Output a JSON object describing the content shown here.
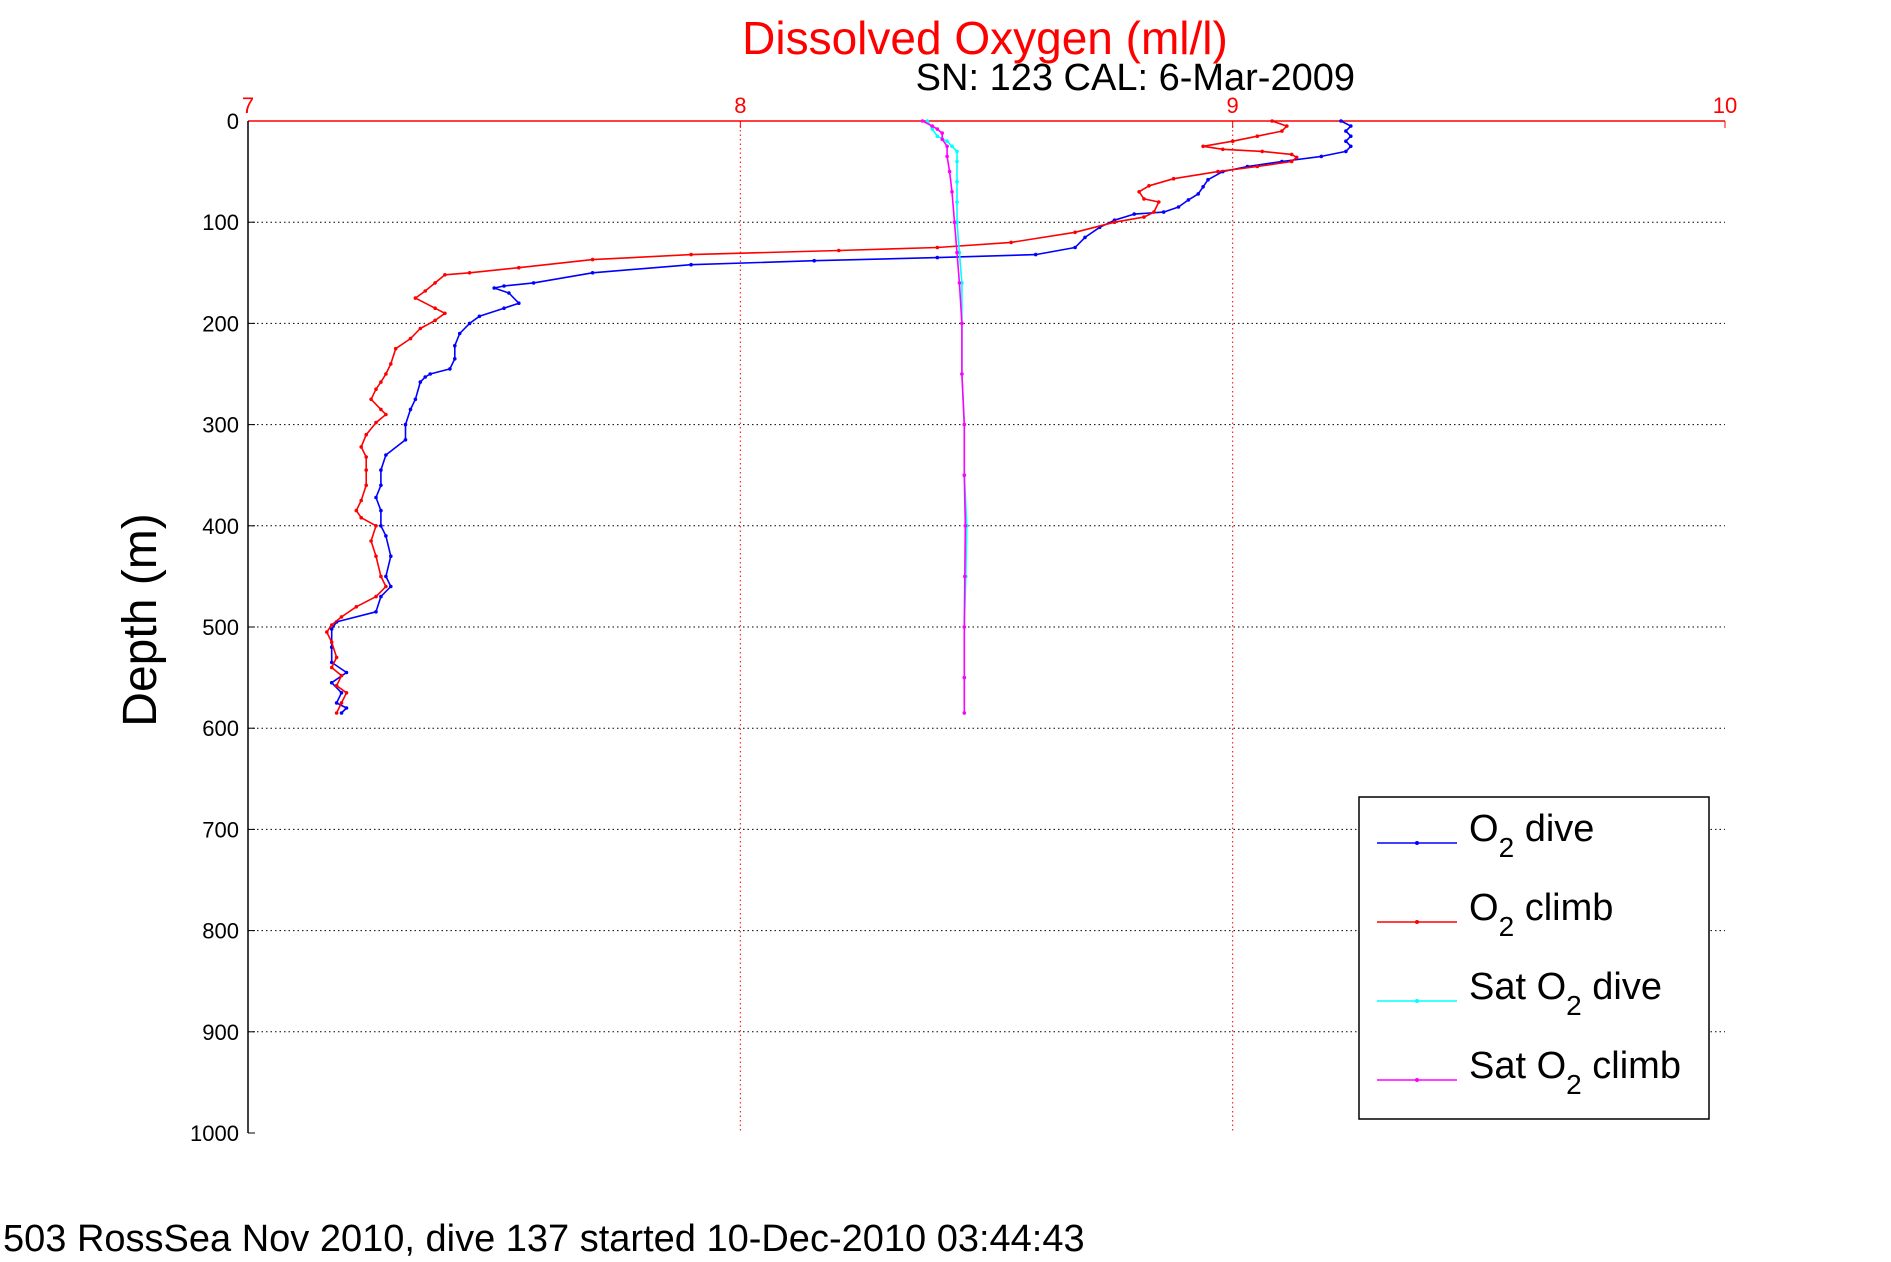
{
  "chart_data": {
    "type": "line",
    "title": "Dissolved Oxygen (ml/l)",
    "subtitle": "SN: 123  CAL: 6-Mar-2009",
    "ylabel": "Depth (m)",
    "xlabel": "",
    "footer": "503 RossSea Nov 2010, dive 137 started 10-Dec-2010 03:44:43",
    "xlim": [
      7,
      10
    ],
    "ylim": [
      0,
      1000
    ],
    "y_reversed": true,
    "x_axis_position": "top",
    "x_ticks": [
      "7",
      "8",
      "9",
      "10"
    ],
    "y_ticks": [
      "0",
      "100",
      "200",
      "300",
      "400",
      "500",
      "600",
      "700",
      "800",
      "900",
      "1000"
    ],
    "grid": true,
    "legend_position": "bottom-right",
    "colors": {
      "title": "#ff0000",
      "x_axis": "#ff0000",
      "grid_x": "#ff0000",
      "grid_y": "#000000"
    },
    "series": [
      {
        "name": "O2 dive",
        "legend": {
          "main": "O",
          "sub": "2",
          "rest": " dive"
        },
        "color": "#0000ff",
        "points": [
          [
            9.22,
            0
          ],
          [
            9.24,
            5
          ],
          [
            9.23,
            10
          ],
          [
            9.24,
            15
          ],
          [
            9.23,
            20
          ],
          [
            9.24,
            25
          ],
          [
            9.23,
            30
          ],
          [
            9.18,
            35
          ],
          [
            9.1,
            40
          ],
          [
            9.03,
            45
          ],
          [
            8.98,
            50
          ],
          [
            8.95,
            58
          ],
          [
            8.94,
            65
          ],
          [
            8.93,
            72
          ],
          [
            8.91,
            78
          ],
          [
            8.89,
            85
          ],
          [
            8.86,
            90
          ],
          [
            8.8,
            92
          ],
          [
            8.76,
            98
          ],
          [
            8.73,
            105
          ],
          [
            8.7,
            115
          ],
          [
            8.68,
            125
          ],
          [
            8.6,
            132
          ],
          [
            8.4,
            135
          ],
          [
            8.15,
            138
          ],
          [
            7.9,
            142
          ],
          [
            7.7,
            150
          ],
          [
            7.58,
            160
          ],
          [
            7.52,
            163
          ],
          [
            7.5,
            165
          ],
          [
            7.53,
            170
          ],
          [
            7.55,
            180
          ],
          [
            7.52,
            185
          ],
          [
            7.47,
            193
          ],
          [
            7.45,
            200
          ],
          [
            7.43,
            210
          ],
          [
            7.42,
            222
          ],
          [
            7.42,
            235
          ],
          [
            7.41,
            245
          ],
          [
            7.37,
            250
          ],
          [
            7.36,
            253
          ],
          [
            7.35,
            258
          ],
          [
            7.34,
            275
          ],
          [
            7.33,
            285
          ],
          [
            7.32,
            300
          ],
          [
            7.32,
            315
          ],
          [
            7.28,
            330
          ],
          [
            7.27,
            345
          ],
          [
            7.27,
            360
          ],
          [
            7.26,
            372
          ],
          [
            7.27,
            385
          ],
          [
            7.27,
            400
          ],
          [
            7.28,
            410
          ],
          [
            7.29,
            430
          ],
          [
            7.28,
            450
          ],
          [
            7.29,
            460
          ],
          [
            7.27,
            470
          ],
          [
            7.26,
            485
          ],
          [
            7.18,
            495
          ],
          [
            7.17,
            502
          ],
          [
            7.17,
            520
          ],
          [
            7.17,
            535
          ],
          [
            7.2,
            545
          ],
          [
            7.17,
            555
          ],
          [
            7.19,
            565
          ],
          [
            7.18,
            575
          ],
          [
            7.2,
            580
          ],
          [
            7.19,
            585
          ]
        ]
      },
      {
        "name": "O2 climb",
        "legend": {
          "main": "O",
          "sub": "2",
          "rest": " climb"
        },
        "color": "#ff0000",
        "points": [
          [
            9.08,
            0
          ],
          [
            9.11,
            5
          ],
          [
            9.1,
            10
          ],
          [
            9.05,
            15
          ],
          [
            9.0,
            20
          ],
          [
            8.94,
            25
          ],
          [
            8.98,
            28
          ],
          [
            9.06,
            30
          ],
          [
            9.12,
            33
          ],
          [
            9.13,
            36
          ],
          [
            9.12,
            40
          ],
          [
            9.05,
            45
          ],
          [
            8.97,
            50
          ],
          [
            8.88,
            57
          ],
          [
            8.83,
            64
          ],
          [
            8.81,
            70
          ],
          [
            8.82,
            77
          ],
          [
            8.85,
            80
          ],
          [
            8.84,
            90
          ],
          [
            8.82,
            95
          ],
          [
            8.76,
            100
          ],
          [
            8.68,
            110
          ],
          [
            8.55,
            120
          ],
          [
            8.4,
            125
          ],
          [
            8.2,
            128
          ],
          [
            7.9,
            132
          ],
          [
            7.7,
            137
          ],
          [
            7.55,
            145
          ],
          [
            7.45,
            150
          ],
          [
            7.4,
            152
          ],
          [
            7.38,
            160
          ],
          [
            7.36,
            168
          ],
          [
            7.34,
            175
          ],
          [
            7.38,
            185
          ],
          [
            7.4,
            190
          ],
          [
            7.38,
            197
          ],
          [
            7.35,
            205
          ],
          [
            7.33,
            215
          ],
          [
            7.3,
            225
          ],
          [
            7.29,
            240
          ],
          [
            7.28,
            250
          ],
          [
            7.27,
            258
          ],
          [
            7.26,
            265
          ],
          [
            7.25,
            275
          ],
          [
            7.27,
            285
          ],
          [
            7.28,
            290
          ],
          [
            7.26,
            298
          ],
          [
            7.24,
            310
          ],
          [
            7.23,
            322
          ],
          [
            7.24,
            332
          ],
          [
            7.24,
            345
          ],
          [
            7.24,
            360
          ],
          [
            7.23,
            375
          ],
          [
            7.22,
            385
          ],
          [
            7.23,
            392
          ],
          [
            7.26,
            400
          ],
          [
            7.25,
            415
          ],
          [
            7.26,
            430
          ],
          [
            7.27,
            450
          ],
          [
            7.28,
            460
          ],
          [
            7.26,
            470
          ],
          [
            7.22,
            480
          ],
          [
            7.19,
            490
          ],
          [
            7.17,
            498
          ],
          [
            7.16,
            505
          ],
          [
            7.17,
            515
          ],
          [
            7.18,
            530
          ],
          [
            7.17,
            540
          ],
          [
            7.19,
            548
          ],
          [
            7.18,
            558
          ],
          [
            7.2,
            565
          ],
          [
            7.19,
            575
          ],
          [
            7.18,
            585
          ]
        ]
      },
      {
        "name": "Sat O2 dive",
        "legend": {
          "main": "Sat O",
          "sub": "2",
          "rest": " dive"
        },
        "color": "#00ffff",
        "points": [
          [
            8.38,
            0
          ],
          [
            8.39,
            8
          ],
          [
            8.4,
            15
          ],
          [
            8.42,
            20
          ],
          [
            8.43,
            25
          ],
          [
            8.44,
            30
          ],
          [
            8.44,
            40
          ],
          [
            8.44,
            60
          ],
          [
            8.44,
            80
          ],
          [
            8.44,
            100
          ],
          [
            8.445,
            130
          ],
          [
            8.45,
            160
          ],
          [
            8.45,
            200
          ],
          [
            8.45,
            250
          ],
          [
            8.455,
            300
          ],
          [
            8.455,
            350
          ],
          [
            8.46,
            400
          ],
          [
            8.458,
            450
          ],
          [
            8.455,
            500
          ],
          [
            8.455,
            550
          ],
          [
            8.455,
            585
          ]
        ]
      },
      {
        "name": "Sat O2 climb",
        "legend": {
          "main": "Sat O",
          "sub": "2",
          "rest": " climb"
        },
        "color": "#ff00ff",
        "points": [
          [
            8.37,
            0
          ],
          [
            8.39,
            5
          ],
          [
            8.4,
            8
          ],
          [
            8.41,
            12
          ],
          [
            8.41,
            18
          ],
          [
            8.42,
            25
          ],
          [
            8.42,
            35
          ],
          [
            8.425,
            50
          ],
          [
            8.43,
            70
          ],
          [
            8.435,
            100
          ],
          [
            8.44,
            130
          ],
          [
            8.445,
            160
          ],
          [
            8.45,
            200
          ],
          [
            8.45,
            250
          ],
          [
            8.455,
            300
          ],
          [
            8.455,
            350
          ],
          [
            8.457,
            400
          ],
          [
            8.456,
            450
          ],
          [
            8.455,
            500
          ],
          [
            8.455,
            550
          ],
          [
            8.455,
            585
          ]
        ]
      }
    ]
  }
}
